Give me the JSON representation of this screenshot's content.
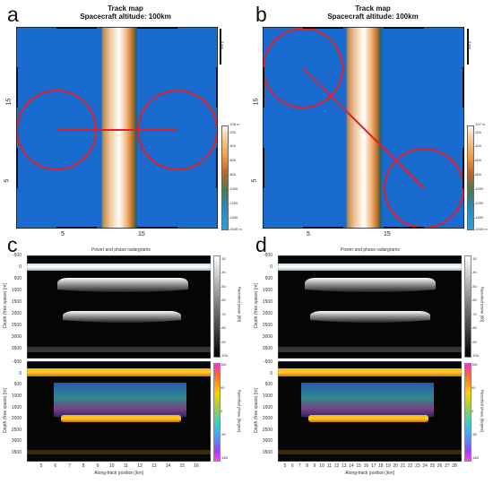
{
  "panels": {
    "a": {
      "letter": "a"
    },
    "b": {
      "letter": "b"
    },
    "c": {
      "letter": "c"
    },
    "d": {
      "letter": "d"
    }
  },
  "track_map": {
    "title": "Track map",
    "subtitle": "Spacecraft altitude: 100km",
    "x_ticks": [
      "5",
      "15"
    ],
    "y_ticks": [
      "15",
      "5"
    ],
    "scale_a": "5 km",
    "scale_b": "5 km",
    "colorbar_a": {
      "top": "-196 m",
      "ticks": [
        "-200",
        "-400",
        "-600",
        "-800",
        "-1000",
        "-1200",
        "-1400"
      ],
      "bottom": "-1530 m"
    },
    "colorbar_b": {
      "top": "-197 m",
      "ticks": [
        "-200",
        "-400",
        "-600",
        "-800",
        "-1000",
        "-1200",
        "-1400"
      ],
      "bottom": "-1530 m"
    }
  },
  "radargram": {
    "title": "Power and phase radargrams",
    "ylabel": "Depth (free space) [m]",
    "xlabel": "Along-track position [km]",
    "y_ticks": [
      "-500",
      "0",
      "500",
      "1000",
      "1500",
      "2000",
      "2500",
      "3000",
      "3500"
    ],
    "x_ticks_c": [
      "5",
      "6",
      "7",
      "8",
      "9",
      "10",
      "11",
      "12",
      "13",
      "14",
      "15",
      "16"
    ],
    "x_ticks_d": [
      "5",
      "6",
      "7",
      "8",
      "9",
      "10",
      "11",
      "12",
      "13",
      "14",
      "15",
      "16",
      "17",
      "18",
      "19",
      "20",
      "21",
      "22",
      "23",
      "24",
      "25",
      "26",
      "27",
      "28"
    ],
    "power_cb_label": "Recorded power [dB]",
    "power_cb_ticks": [
      "-30",
      "-40",
      "-50",
      "-60",
      "-70",
      "-80",
      "-90",
      "-100"
    ],
    "phase_cb_label": "Recorded phase [degree]",
    "phase_cb_ticks": [
      "180",
      "90",
      "0",
      "-90",
      "-180"
    ]
  },
  "colors": {
    "map_blue": "#1a6bd0",
    "track_red": "#e01f2a"
  }
}
